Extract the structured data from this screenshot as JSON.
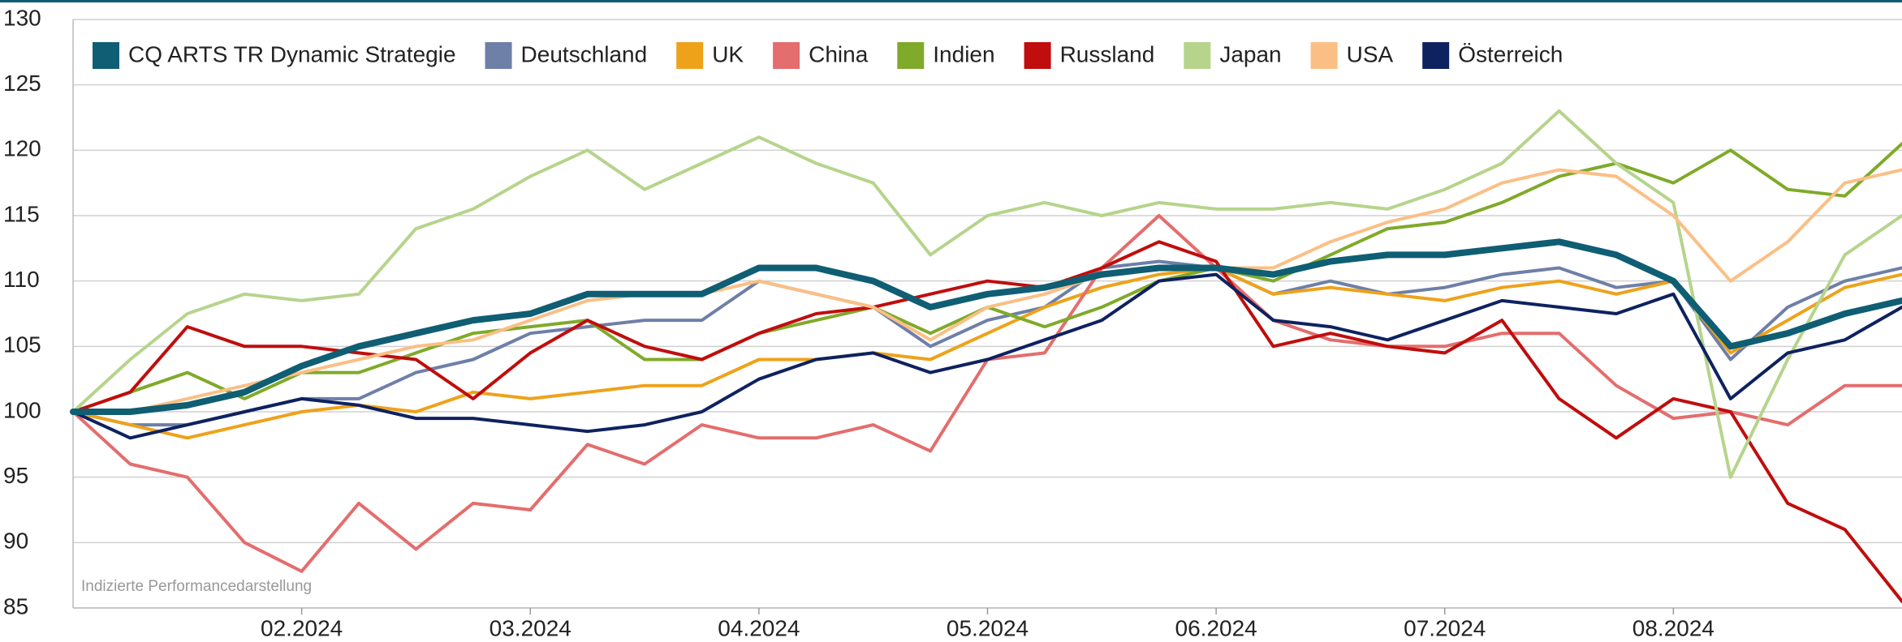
{
  "chart_data": {
    "type": "line",
    "annotation": "Indizierte Performancedarstellung",
    "categories": [
      null,
      null,
      null,
      null,
      "02.2024",
      null,
      null,
      null,
      "03.2024",
      null,
      null,
      null,
      "04.2024",
      null,
      null,
      null,
      "05.2024",
      null,
      null,
      null,
      "06.2024",
      null,
      null,
      null,
      "07.2024",
      null,
      null,
      null,
      "08.2024",
      null,
      null,
      null,
      null
    ],
    "ylim": [
      85,
      130
    ],
    "yticks": [
      85,
      90,
      95,
      100,
      105,
      110,
      115,
      120,
      125,
      130
    ],
    "grid": true,
    "legend": "top-left",
    "series": [
      {
        "name": "CQ ARTS TR Dynamic Strategie",
        "color": "#0f5e73",
        "values": [
          100,
          100,
          100.5,
          101.5,
          103.5,
          105,
          106,
          107,
          107.5,
          109,
          109,
          109,
          111,
          111,
          110,
          108,
          109,
          109.5,
          110.5,
          111,
          111,
          110.5,
          111.5,
          112,
          112,
          112.5,
          113,
          112,
          110,
          105,
          106,
          107.5,
          108.5
        ]
      },
      {
        "name": "Deutschland",
        "color": "#6e7fa8",
        "values": [
          100,
          99,
          99,
          100,
          101,
          101,
          103,
          104,
          106,
          106.5,
          107,
          107,
          110,
          109,
          108,
          105,
          107,
          108,
          111,
          111.5,
          111,
          109,
          110,
          109,
          109.5,
          110.5,
          111,
          109.5,
          110,
          104,
          108,
          110,
          111
        ]
      },
      {
        "name": "UK",
        "color": "#eea21a",
        "values": [
          100,
          99,
          98,
          99,
          100,
          100.5,
          100,
          101.5,
          101,
          101.5,
          102,
          102,
          104,
          104,
          104.5,
          104,
          106,
          108,
          109.5,
          110.5,
          111,
          109,
          109.5,
          109,
          108.5,
          109.5,
          110,
          109,
          110,
          104.5,
          107,
          109.5,
          110.5
        ]
      },
      {
        "name": "China",
        "color": "#e46d6d",
        "values": [
          100,
          96,
          95,
          90,
          87.8,
          93,
          89.5,
          93,
          92.5,
          97.5,
          96,
          99,
          98,
          98,
          99,
          97,
          104,
          104.5,
          111,
          115,
          111,
          107,
          105.5,
          105,
          105,
          106,
          106,
          102,
          99.5,
          100,
          99,
          102,
          102
        ]
      },
      {
        "name": "Indien",
        "color": "#7faa2a",
        "values": [
          100,
          101.5,
          103,
          101,
          103,
          103,
          104.5,
          106,
          106.5,
          107,
          104,
          104,
          106,
          107,
          108,
          106,
          108,
          106.5,
          108,
          110,
          111,
          110,
          112,
          114,
          114.5,
          116,
          118,
          119,
          117.5,
          120,
          117,
          116.5,
          120.5
        ]
      },
      {
        "name": "Russland",
        "color": "#c00d0d",
        "values": [
          100,
          101.5,
          106.5,
          105,
          105,
          104.5,
          104,
          101,
          104.5,
          107,
          105,
          104,
          106,
          107.5,
          108,
          109,
          110,
          109.5,
          111,
          113,
          111.5,
          105,
          106,
          105,
          104.5,
          107,
          101,
          98,
          101,
          100,
          93,
          91,
          85.5
        ]
      },
      {
        "name": "Japan",
        "color": "#b6d48c",
        "values": [
          100,
          104,
          107.5,
          109,
          108.5,
          109,
          114,
          115.5,
          118,
          120,
          117,
          119,
          121,
          119,
          117.5,
          112,
          115,
          116,
          115,
          116,
          115.5,
          115.5,
          116,
          115.5,
          117,
          119,
          123,
          119,
          116,
          95,
          104,
          112,
          115
        ]
      },
      {
        "name": "USA",
        "color": "#fbbf85",
        "values": [
          100,
          100,
          101,
          102,
          103,
          104,
          105,
          105.5,
          107,
          108.5,
          109,
          109,
          110,
          109,
          108,
          105.5,
          108,
          109,
          110.5,
          111,
          111,
          111,
          113,
          114.5,
          115.5,
          117.5,
          118.5,
          118,
          115,
          110,
          113,
          117.5,
          118.5
        ]
      },
      {
        "name": "Österreich",
        "color": "#0e2260",
        "values": [
          100,
          98,
          99,
          100,
          101,
          100.5,
          99.5,
          99.5,
          99,
          98.5,
          99,
          100,
          102.5,
          104,
          104.5,
          103,
          104,
          105.5,
          107,
          110,
          110.5,
          107,
          106.5,
          105.5,
          107,
          108.5,
          108,
          107.5,
          109,
          101,
          104.5,
          105.5,
          108
        ]
      }
    ]
  }
}
